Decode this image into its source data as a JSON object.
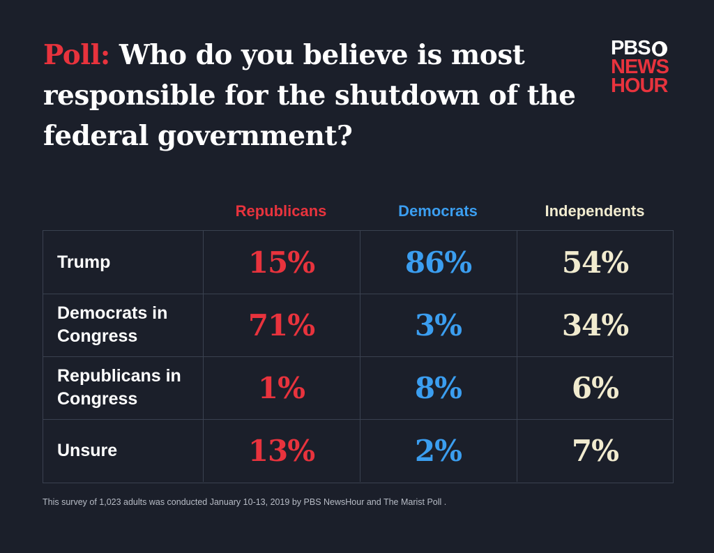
{
  "title": {
    "lead": "Poll:",
    "text": " Who do you believe is most responsible for the shutdown of the federal government?"
  },
  "logo": {
    "line1": "PBS",
    "line2": "NEWS",
    "line3": "HOUR"
  },
  "colors": {
    "republicans": "#e8333d",
    "democrats": "#3b9ef0",
    "independents": "#f1ebcf",
    "background": "#1b1f2a"
  },
  "chart_data": {
    "type": "table",
    "columns": [
      "Republicans",
      "Democrats",
      "Independents"
    ],
    "rows": [
      {
        "label": "Trump",
        "values": [
          "15%",
          "86%",
          "54%"
        ]
      },
      {
        "label": "Democrats in Congress",
        "values": [
          "71%",
          "3%",
          "34%"
        ]
      },
      {
        "label": "Republicans in Congress",
        "values": [
          "1%",
          "8%",
          "6%"
        ]
      },
      {
        "label": "Unsure",
        "values": [
          "13%",
          "2%",
          "7%"
        ]
      }
    ]
  },
  "footnote": "This survey of 1,023 adults was conducted January 10-13, 2019 by PBS NewsHour and The Marist Poll ."
}
